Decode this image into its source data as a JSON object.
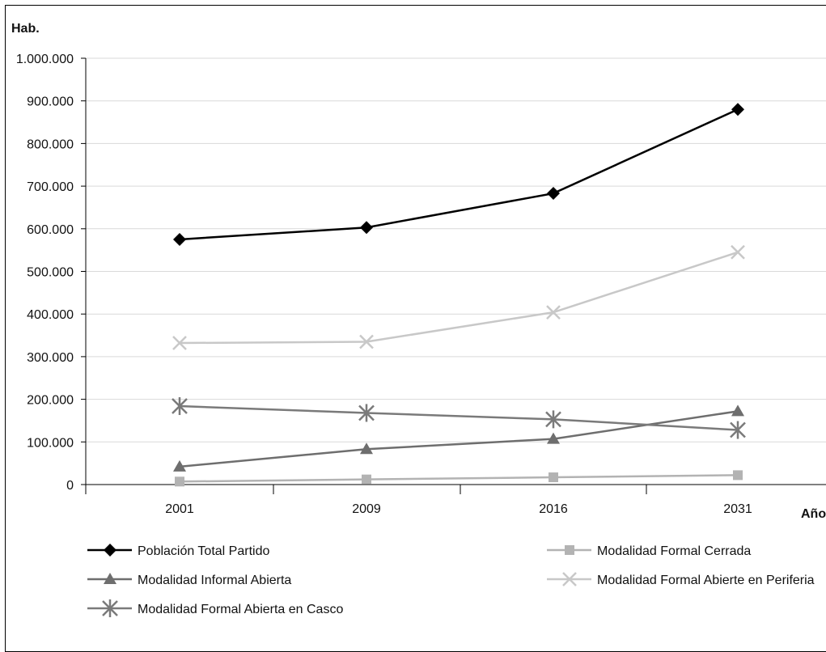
{
  "chart_data": {
    "type": "line",
    "title": "",
    "ylabel": "Hab.",
    "xlabel": "Año",
    "categories": [
      "2001",
      "2009",
      "2016",
      "2031"
    ],
    "ylim": [
      0,
      1000000
    ],
    "yticks": [
      0,
      100000,
      200000,
      300000,
      400000,
      500000,
      600000,
      700000,
      800000,
      900000,
      1000000
    ],
    "ytick_labels": [
      "0",
      "100.000",
      "200.000",
      "300.000",
      "400.000",
      "500.000",
      "600.000",
      "700.000",
      "800.000",
      "900.000",
      "1.000.000"
    ],
    "grid": true,
    "legend_position": "bottom",
    "series": [
      {
        "name": "Población Total Partido",
        "values": [
          575000,
          603000,
          683000,
          880000
        ],
        "color": "#000000",
        "marker": "diamond"
      },
      {
        "name": "Modalidad Informal Abierta",
        "values": [
          42000,
          83000,
          107000,
          172000
        ],
        "color": "#6e6e6e",
        "marker": "triangle"
      },
      {
        "name": "Modalidad Formal Abierta en Casco",
        "values": [
          184000,
          168000,
          153000,
          128000
        ],
        "color": "#7a7a7a",
        "marker": "asterisk"
      },
      {
        "name": "Modalidad Formal Cerrada",
        "values": [
          7000,
          12000,
          17000,
          22000
        ],
        "color": "#b3b3b3",
        "marker": "square"
      },
      {
        "name": "Modalidad Formal Abierte en Periferia",
        "values": [
          332000,
          335000,
          404000,
          545000
        ],
        "color": "#c8c8c8",
        "marker": "x"
      }
    ]
  }
}
